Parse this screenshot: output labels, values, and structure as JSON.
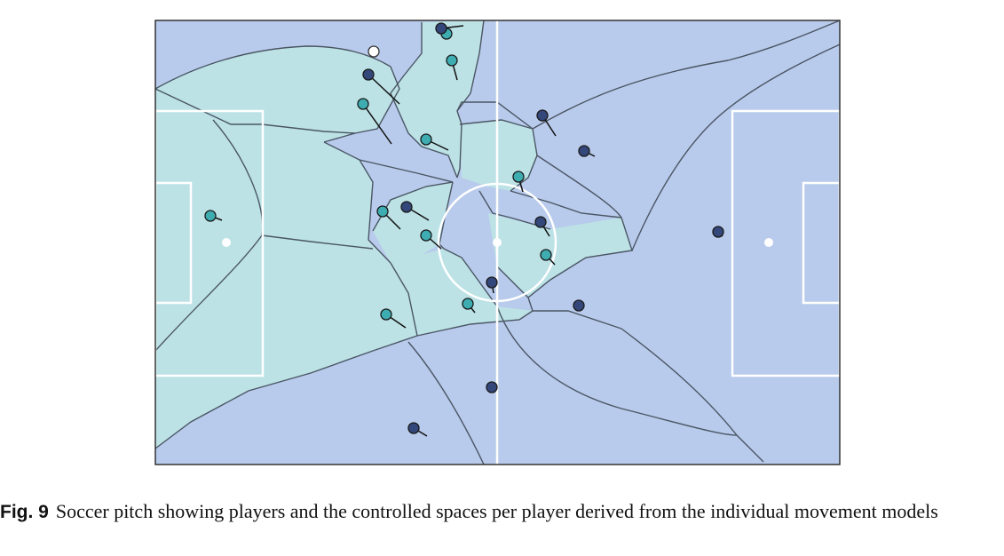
{
  "figure": {
    "label": "Fig. 9",
    "caption": "Soccer pitch showing players and the controlled spaces per player derived from the individual movement models"
  },
  "colors": {
    "home_region": "#bce2e6",
    "away_region": "#b8cbec",
    "home_player": "#3eadb1",
    "away_player": "#34477a",
    "ball": "#ffffff",
    "boundary": "#4b5664",
    "pitch_lines": "#ffffff"
  },
  "players": {
    "home": [
      {
        "id": "h1"
      },
      {
        "id": "h2"
      },
      {
        "id": "h3"
      },
      {
        "id": "h4"
      },
      {
        "id": "h5"
      },
      {
        "id": "h6"
      },
      {
        "id": "h7"
      },
      {
        "id": "h8"
      },
      {
        "id": "h9"
      },
      {
        "id": "h10"
      },
      {
        "id": "h11"
      }
    ],
    "away": [
      {
        "id": "a1"
      },
      {
        "id": "a2"
      },
      {
        "id": "a3"
      },
      {
        "id": "a4"
      },
      {
        "id": "a5"
      },
      {
        "id": "a6"
      },
      {
        "id": "a7"
      },
      {
        "id": "a8"
      },
      {
        "id": "a9"
      },
      {
        "id": "a10"
      },
      {
        "id": "a11"
      }
    ]
  }
}
